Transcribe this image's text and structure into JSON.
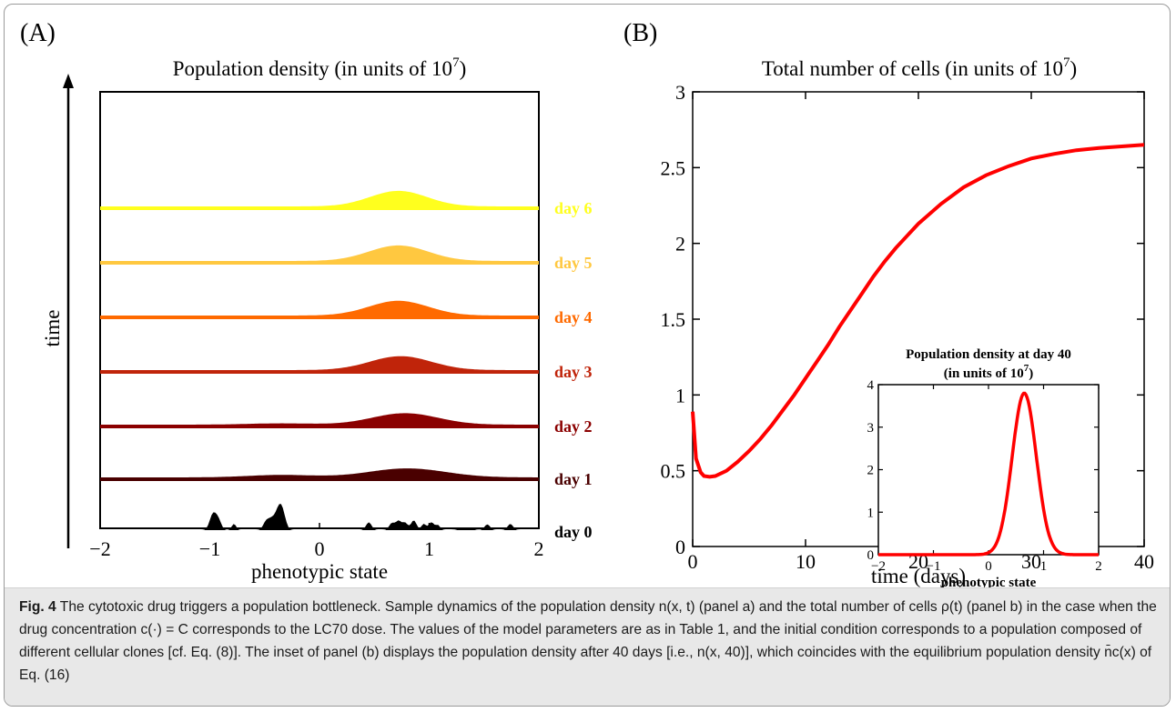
{
  "panel_a": {
    "label": "(A)",
    "title": "Population density (in units of 10",
    "title_exp": "7",
    "title_end": ")",
    "ylabel": "time",
    "xlabel": "phenotypic state",
    "x_ticks": [
      "−2",
      "−1",
      "0",
      "1",
      "2"
    ]
  },
  "panel_b": {
    "label": "(B)",
    "title": "Total number of cells (in units of 10",
    "title_exp": "7",
    "title_end": ")",
    "xlabel": "time (days)",
    "x_ticks": [
      "0",
      "10",
      "20",
      "30",
      "40"
    ],
    "y_ticks": [
      "0",
      "0.5",
      "1",
      "1.5",
      "2",
      "2.5",
      "3"
    ]
  },
  "inset": {
    "title_line1": "Population density at day 40",
    "title_line2_pre": "(in units of 10",
    "title_line2_exp": "7",
    "title_line2_end": ")",
    "xlabel": "phenotypic state",
    "x_ticks": [
      "−2",
      "−1",
      "0",
      "1",
      "2"
    ],
    "y_ticks": [
      "0",
      "1",
      "2",
      "3",
      "4"
    ]
  },
  "caption": {
    "fig_label": "Fig. 4",
    "text": "The cytotoxic drug triggers a population bottleneck. Sample dynamics of the population density n(x, t) (panel a) and the total number of cells ρ(t) (panel b) in the case when the drug concentration c(·) = C corresponds to the LC70 dose. The values of the model parameters are as in Table 1, and the initial condition corresponds to a population composed of different cellular clones [cf. Eq. (8)]. The inset of panel (b) displays the population density after 40 days [i.e., n(x, 40)], which coincides with the equilibrium population density n̄c(x) of Eq. (16)"
  },
  "chart_data": [
    {
      "type": "area",
      "panel": "A",
      "xlabel": "phenotypic state",
      "ylabel": "time",
      "xlim": [
        -2,
        2
      ],
      "grid": false,
      "series": [
        {
          "name": "day 0",
          "color": "#000000",
          "spikes": [
            {
              "x": -0.97,
              "h": 1.0,
              "w": 0.03
            },
            {
              "x": -0.92,
              "h": 0.55,
              "w": 0.025
            },
            {
              "x": -0.78,
              "h": 0.38,
              "w": 0.02
            },
            {
              "x": -0.49,
              "h": 0.45,
              "w": 0.025
            },
            {
              "x": -0.44,
              "h": 0.62,
              "w": 0.03
            },
            {
              "x": -0.38,
              "h": 0.9,
              "w": 0.03
            },
            {
              "x": -0.34,
              "h": 1.1,
              "w": 0.03
            },
            {
              "x": 0.45,
              "h": 0.48,
              "w": 0.025
            },
            {
              "x": 0.66,
              "h": 0.42,
              "w": 0.025
            },
            {
              "x": 0.72,
              "h": 0.55,
              "w": 0.025
            },
            {
              "x": 0.78,
              "h": 0.45,
              "w": 0.025
            },
            {
              "x": 0.86,
              "h": 0.6,
              "w": 0.025
            },
            {
              "x": 0.95,
              "h": 0.38,
              "w": 0.02
            },
            {
              "x": 1.02,
              "h": 0.48,
              "w": 0.025
            },
            {
              "x": 1.08,
              "h": 0.3,
              "w": 0.02
            },
            {
              "x": 1.3,
              "h": 0.15,
              "w": 0.03
            },
            {
              "x": 1.38,
              "h": 0.12,
              "w": 0.03
            },
            {
              "x": 1.53,
              "h": 0.35,
              "w": 0.025
            },
            {
              "x": 1.74,
              "h": 0.38,
              "w": 0.025
            }
          ]
        },
        {
          "name": "day 1",
          "color": "#4a0000",
          "peak_x": 0.8,
          "peak_h": 0.55,
          "sigma": 0.35,
          "secondary": {
            "x": -0.35,
            "h": 0.15,
            "sigma": 0.3
          }
        },
        {
          "name": "day 2",
          "color": "#8b0000",
          "peak_x": 0.78,
          "peak_h": 0.7,
          "sigma": 0.3,
          "secondary": {
            "x": -0.35,
            "h": 0.08,
            "sigma": 0.3
          }
        },
        {
          "name": "day 3",
          "color": "#c0240a",
          "peak_x": 0.74,
          "peak_h": 0.85,
          "sigma": 0.28
        },
        {
          "name": "day 4",
          "color": "#ff6a00",
          "peak_x": 0.72,
          "peak_h": 0.9,
          "sigma": 0.27
        },
        {
          "name": "day 5",
          "color": "#ffc840",
          "peak_x": 0.72,
          "peak_h": 0.95,
          "sigma": 0.27
        },
        {
          "name": "day 6",
          "color": "#ffff1e",
          "peak_x": 0.72,
          "peak_h": 0.95,
          "sigma": 0.26
        }
      ]
    },
    {
      "type": "line",
      "panel": "B",
      "title": "Total number of cells (in units of 10^7)",
      "xlabel": "time (days)",
      "ylabel": "",
      "xlim": [
        0,
        40
      ],
      "ylim": [
        0,
        3
      ],
      "grid": false,
      "series": [
        {
          "name": "",
          "color": "#ff0000",
          "x": [
            0,
            0.3,
            0.7,
            1,
            1.5,
            2,
            3,
            4,
            5,
            6,
            7,
            8,
            9,
            10,
            11,
            12,
            13,
            14,
            15,
            16,
            17,
            18,
            19,
            20,
            22,
            24,
            26,
            28,
            30,
            32,
            34,
            36,
            38,
            40
          ],
          "y": [
            0.89,
            0.58,
            0.49,
            0.465,
            0.46,
            0.465,
            0.5,
            0.56,
            0.63,
            0.71,
            0.8,
            0.9,
            1.0,
            1.11,
            1.22,
            1.33,
            1.45,
            1.56,
            1.67,
            1.78,
            1.88,
            1.97,
            2.05,
            2.13,
            2.26,
            2.37,
            2.45,
            2.51,
            2.56,
            2.59,
            2.615,
            2.63,
            2.64,
            2.65
          ]
        }
      ]
    },
    {
      "type": "line",
      "panel": "B inset",
      "title": "Population density at day 40 (in units of 10^7)",
      "xlabel": "phenotypic state",
      "ylabel": "",
      "xlim": [
        -2,
        2
      ],
      "ylim": [
        0,
        4
      ],
      "grid": false,
      "series": [
        {
          "name": "",
          "color": "#ff0000",
          "peak_x": 0.65,
          "peak_y": 3.8,
          "sigma": 0.22
        }
      ]
    }
  ]
}
